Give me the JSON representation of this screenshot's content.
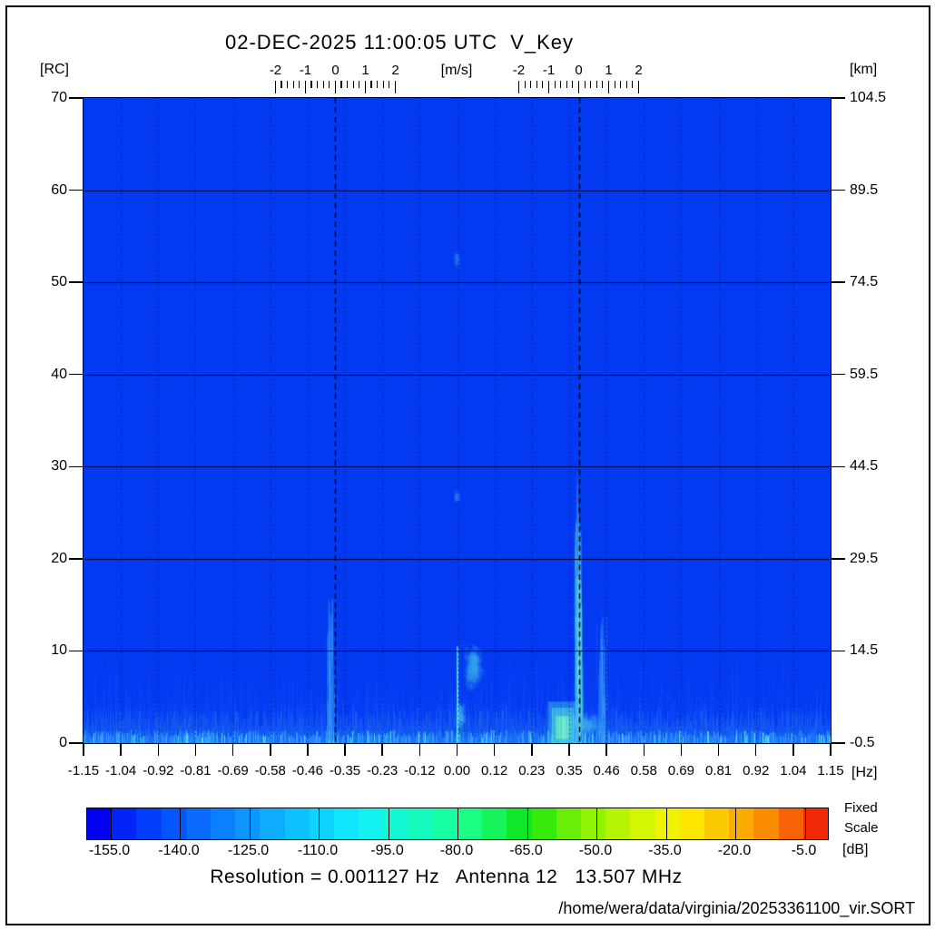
{
  "title": "02-DEC-2025 11:00:05 UTC  V_Key",
  "axes": {
    "left": {
      "unit_label": "[RC]",
      "ticks": [
        "70",
        "60",
        "50",
        "40",
        "30",
        "20",
        "10",
        "0"
      ]
    },
    "right": {
      "unit_label": "[km]",
      "ticks": [
        "104.5",
        "89.5",
        "74.5",
        "59.5",
        "44.5",
        "29.5",
        "14.5",
        "-0.5"
      ]
    },
    "bottom": {
      "unit_label": "[Hz]",
      "ticks": [
        "-1.15",
        "-1.04",
        "-0.92",
        "-0.81",
        "-0.69",
        "-0.58",
        "-0.46",
        "-0.35",
        "-0.23",
        "-0.12",
        "0.00",
        "0.12",
        "0.23",
        "0.35",
        "0.46",
        "0.58",
        "0.69",
        "0.81",
        "0.92",
        "1.04",
        "1.15"
      ]
    },
    "top": {
      "unit_label": "[m/s]",
      "ruler_ticks": [
        "-2",
        "-1",
        "0",
        "1",
        "2"
      ]
    }
  },
  "colorbar": {
    "tick_labels": [
      "-155.0",
      "-140.0",
      "-125.0",
      "-110.0",
      "-95.0",
      "-80.0",
      "-65.0",
      "-50.0",
      "-35.0",
      "-20.0",
      "-5.0"
    ],
    "tick_values_db": [
      -155,
      -140,
      -125,
      -110,
      -95,
      -80,
      -65,
      -50,
      -35,
      -20,
      -5
    ],
    "range_db": [
      -160,
      0
    ],
    "unit_label": "[dB]",
    "scale_note": {
      "line1": "Fixed",
      "line2": "Scale"
    },
    "colors": [
      "#0202F2",
      "#0224F8",
      "#023EFC",
      "#0355FD",
      "#0A6AFE",
      "#0B80FE",
      "#0C96FE",
      "#0DACFE",
      "#0EC0FE",
      "#0FD4FE",
      "#10E6FE",
      "#12F2F0",
      "#14F8D8",
      "#16FCBE",
      "#18FEA2",
      "#1AFE84",
      "#16F45C",
      "#10E62A",
      "#36EA0C",
      "#68EE08",
      "#92F206",
      "#B6F404",
      "#D4F602",
      "#EEF400",
      "#FCE600",
      "#FCCA00",
      "#FCAC00",
      "#FA8C02",
      "#F66204",
      "#F02808"
    ]
  },
  "footer": {
    "resolution_line": "Resolution = 0.001127 Hz   Antenna 12   13.507 MHz",
    "file_path": "/home/wera/data/virginia/20253361100_vir.SORT"
  },
  "chart_data": {
    "type": "heatmap",
    "title": "02-DEC-2025 11:00:05 UTC  V_Key",
    "description": "WERA HF radar Doppler backscatter spectrum (range cell vs Doppler frequency), power in dB, mostly at noise floor (deep blue ~ -155 dB)",
    "xlabel": "[Hz]",
    "ylabel_left": "[RC]",
    "ylabel_right": "[km]",
    "x_range_hz": [
      -1.15,
      1.15
    ],
    "y_range_rc": [
      0,
      70
    ],
    "y_range_km": [
      -0.5,
      104.5
    ],
    "value_range_db": [
      -160,
      0
    ],
    "background_db": -155,
    "resolution_hz": 0.001127,
    "antenna": 12,
    "frequency_mhz": 13.507,
    "bragg_lines_hz": [
      -0.3745,
      0.3745
    ],
    "grid_rc_lines": [
      10,
      20,
      30,
      40,
      50,
      60
    ],
    "background_color": "#0439F2",
    "features": [
      {
        "name": "noise-floor",
        "type": "noise",
        "rc_min": 0,
        "rc_max": 14,
        "intensity": 0.9
      },
      {
        "name": "negative-bragg-echo",
        "type": "streaks",
        "center_hz": -0.39,
        "half_width_hz": 0.018,
        "rc_min": 0,
        "rc_max": 16,
        "intensity": 0.45,
        "streaks": 150
      },
      {
        "name": "zero-doppler-patch",
        "type": "patch",
        "center_hz": 0.05,
        "half_width_hz": 0.05,
        "rc_min": 4,
        "rc_max": 12.5,
        "intensity": 0.4
      },
      {
        "name": "zero-doppler-patch-low",
        "type": "patch",
        "center_hz": 0.01,
        "half_width_hz": 0.025,
        "rc_min": 0,
        "rc_max": 6,
        "intensity": 0.55
      },
      {
        "name": "zero-doppler-line",
        "type": "streaks",
        "center_hz": 0.0,
        "half_width_hz": 0.004,
        "rc_min": 0,
        "rc_max": 10.5,
        "intensity": 0.95,
        "streaks": 70,
        "bright_line": true
      },
      {
        "name": "bragg-bottom-band",
        "type": "patch",
        "center_hz": 0.375,
        "half_width_hz": 0.14,
        "rc_min": 0,
        "rc_max": 4,
        "intensity": 0.5
      },
      {
        "name": "strong-sea-echo-core",
        "type": "core",
        "center_hz": 0.325,
        "half_width_hz": 0.045,
        "rc_min": 0,
        "rc_max": 4.5,
        "intensity": 1.0
      },
      {
        "name": "positive-bragg-echo",
        "type": "streaks",
        "center_hz": 0.373,
        "half_width_hz": 0.02,
        "rc_min": 0,
        "rc_max": 25,
        "intensity": 0.85,
        "streaks": 300
      },
      {
        "name": "positive-bragg-tail",
        "type": "streaks",
        "center_hz": 0.369,
        "half_width_hz": 0.009,
        "rc_min": 18,
        "rc_max": 30,
        "intensity": 0.3,
        "streaks": 70
      },
      {
        "name": "positive-bragg-secondary",
        "type": "streaks",
        "center_hz": 0.445,
        "half_width_hz": 0.02,
        "rc_min": 0,
        "rc_max": 14,
        "intensity": 0.45,
        "streaks": 130
      },
      {
        "name": "mid-range-smudge",
        "type": "patch",
        "center_hz": 0.0,
        "half_width_hz": 0.008,
        "rc_min": 25.5,
        "rc_max": 28,
        "intensity": 0.35
      },
      {
        "name": "far-range-smudge",
        "type": "patch",
        "center_hz": 0.0,
        "half_width_hz": 0.012,
        "rc_min": 50.5,
        "rc_max": 54.5,
        "intensity": 0.12
      }
    ]
  }
}
